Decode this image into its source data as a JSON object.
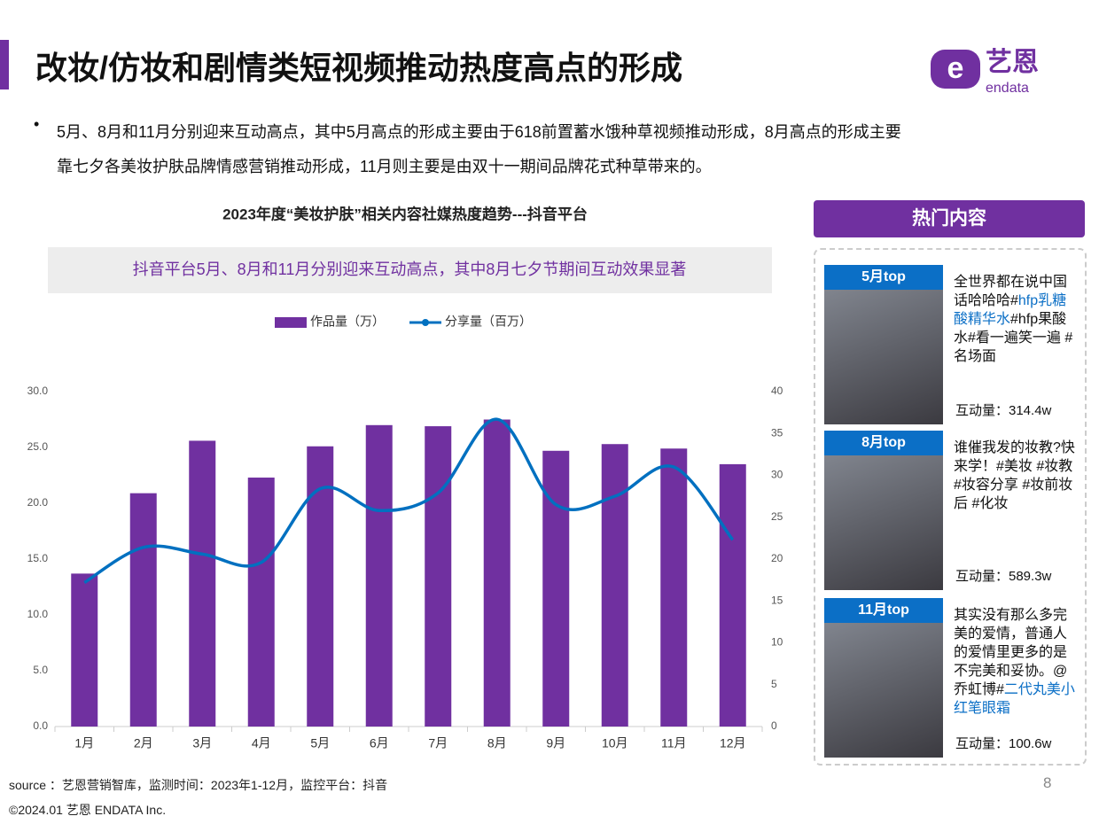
{
  "header": {
    "title": "改妆/仿妆和剧情类短视频推动热度高点的形成",
    "logo_cn": "艺恩",
    "logo_en": "endata"
  },
  "bullet": [
    "5月、8月和11月分别迎来互动高点，其中5月高点的形成主要由于618前置蓄水饿种草视频推动形成，8月高点的形成主要",
    "靠七夕各美妆护肤品牌情感营销推动形成，11月则主要是由双十一期间品牌花式种草带来的。"
  ],
  "chart_data": {
    "type": "bar-line",
    "title": "2023年度“美妆护肤”相关内容社媒热度趋势---抖音平台",
    "subtitle": "抖音平台5月、8月和11月分别迎来互动高点，其中8月七夕节期间互动效果显著",
    "categories": [
      "1月",
      "2月",
      "3月",
      "4月",
      "5月",
      "6月",
      "7月",
      "8月",
      "9月",
      "10月",
      "11月",
      "12月"
    ],
    "series": [
      {
        "name": "作品量（万）",
        "type": "bar",
        "color": "#7030a0",
        "values": [
          13.7,
          20.9,
          25.6,
          22.3,
          25.1,
          27.0,
          26.9,
          27.5,
          24.7,
          25.3,
          24.9,
          23.5
        ]
      },
      {
        "name": "分享量（百万）",
        "type": "line",
        "axis": "y2",
        "color": "#0070c0",
        "values": [
          17.2,
          21.4,
          20.6,
          19.6,
          28.4,
          25.8,
          27.9,
          36.7,
          26.5,
          27.5,
          31.0,
          22.3
        ]
      }
    ],
    "ylim": [
      0,
      30
    ],
    "yticks": [
      {
        "value": 0,
        "label": "0.0"
      },
      {
        "value": 5,
        "label": "5.0"
      },
      {
        "value": 10,
        "label": "10.0"
      },
      {
        "value": 15,
        "label": "15.0"
      },
      {
        "value": 20,
        "label": "20.0"
      },
      {
        "value": 25,
        "label": "25.0"
      },
      {
        "value": 30,
        "label": "30.0"
      }
    ],
    "y2lim": [
      0,
      40
    ],
    "y2ticks": [
      0,
      5,
      10,
      15,
      20,
      25,
      30,
      35,
      40
    ]
  },
  "hot": {
    "title": "热门内容",
    "cards": [
      {
        "tag": "5月top",
        "text_before": "全世界都在说中国话哈哈哈#",
        "link": "hfp乳糖酸精华水",
        "text_after": "#hfp果酸水#看一遍笑一遍 #名场面",
        "metric": "互动量：314.4w"
      },
      {
        "tag": "8月top",
        "text_before": "谁催我发的妆教?快来学！#美妆 #妆教 #妆容分享 #妆前妆后 #化妆",
        "metric": "互动量：589.3w"
      },
      {
        "tag": "11月top",
        "text_before": "其实没有那么多完美的爱情，普通人的爱情里更多的是不完美和妥协。@乔虹博#",
        "link": "二代丸美小红笔眼霜",
        "metric": "互动量：100.6w"
      }
    ]
  },
  "footer": {
    "source": "source ：艺恩营销智库，监测时间：2023年1-12月，监控平台：抖音",
    "copyright": "©2024.01  艺恩 ENDATA Inc.",
    "page": "8"
  }
}
